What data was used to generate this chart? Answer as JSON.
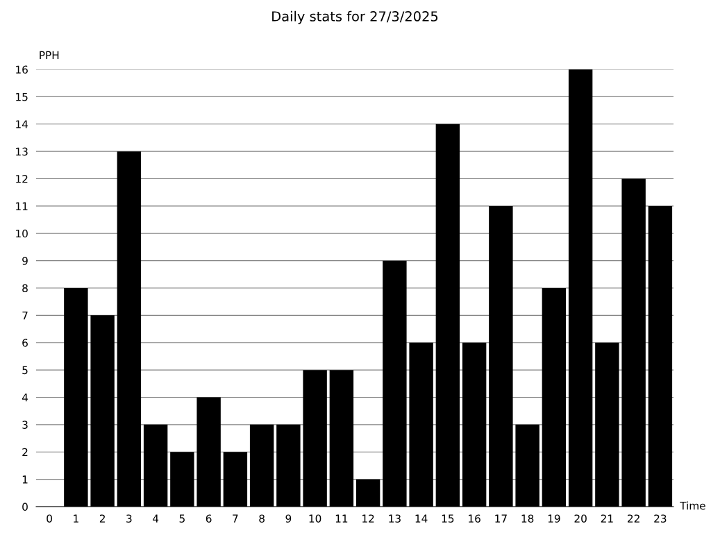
{
  "chart_data": {
    "type": "bar",
    "title": "Daily stats for 27/3/2025",
    "xlabel": "Time",
    "ylabel": "PPH",
    "categories": [
      "0",
      "1",
      "2",
      "3",
      "4",
      "5",
      "6",
      "7",
      "8",
      "9",
      "10",
      "11",
      "12",
      "13",
      "14",
      "15",
      "16",
      "17",
      "18",
      "19",
      "20",
      "21",
      "22",
      "23"
    ],
    "values": [
      0,
      8,
      7,
      13,
      3,
      2,
      4,
      2,
      3,
      3,
      5,
      5,
      1,
      9,
      6,
      14,
      6,
      11,
      3,
      8,
      16,
      6,
      12,
      11
    ],
    "color": "#000000",
    "ylim": [
      0,
      16
    ],
    "yticks": [
      0,
      1,
      2,
      3,
      4,
      5,
      6,
      7,
      8,
      9,
      10,
      11,
      12,
      13,
      14,
      15,
      16
    ],
    "grid": "y"
  }
}
